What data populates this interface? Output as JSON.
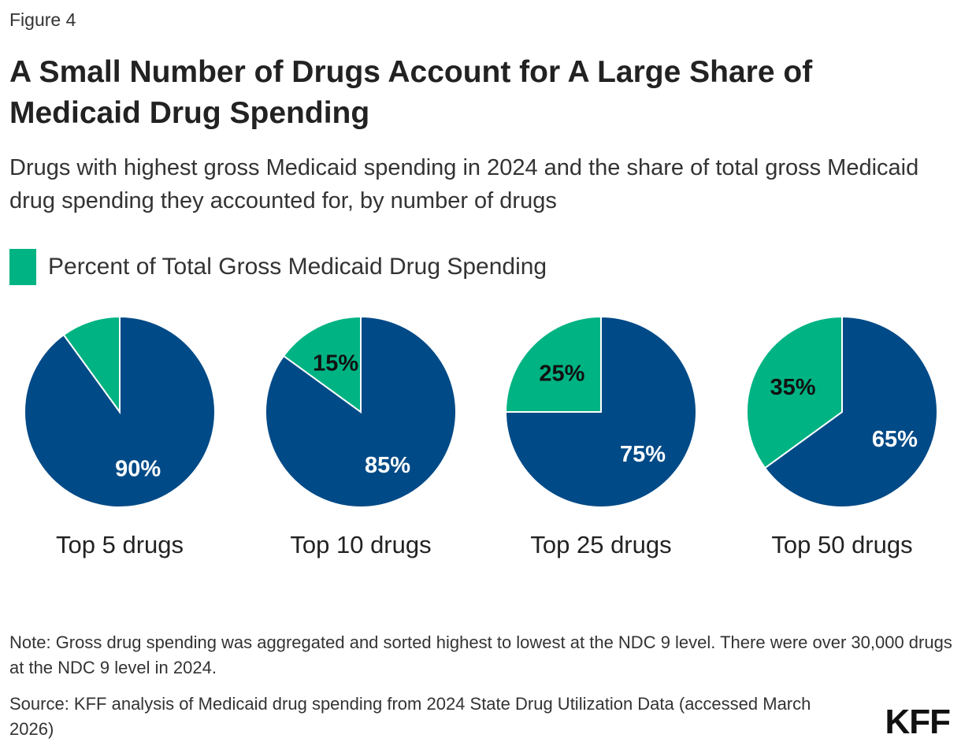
{
  "figure_label": "Figure 4",
  "title": "A Small Number of Drugs Account for A Large Share of Medicaid Drug Spending",
  "subtitle": "Drugs with highest gross Medicaid spending in 2024 and the share of total gross Medicaid drug spending they accounted for, by number of drugs",
  "legend": {
    "label": "Percent of Total Gross Medicaid Drug Spending",
    "color": "#00b383"
  },
  "colors": {
    "share": "#00b383",
    "rest": "#004a87"
  },
  "note": "Note: Gross drug spending was aggregated and sorted highest to lowest at the NDC 9 level. There were over 30,000 drugs at the NDC 9 level in 2024.",
  "source": "Source: KFF analysis of Medicaid drug spending from 2024 State Drug Utilization Data (accessed March 2026)",
  "logo": "KFF",
  "chart_data": {
    "type": "pie",
    "pies": [
      {
        "name": "Top 5 drugs",
        "share": 10,
        "share_label": "",
        "rest": 90,
        "rest_label": "90%"
      },
      {
        "name": "Top 10 drugs",
        "share": 15,
        "share_label": "15%",
        "rest": 85,
        "rest_label": "85%"
      },
      {
        "name": "Top 25 drugs",
        "share": 25,
        "share_label": "25%",
        "rest": 75,
        "rest_label": "75%"
      },
      {
        "name": "Top 50 drugs",
        "share": 35,
        "share_label": "35%",
        "rest": 65,
        "rest_label": "65%"
      }
    ]
  }
}
